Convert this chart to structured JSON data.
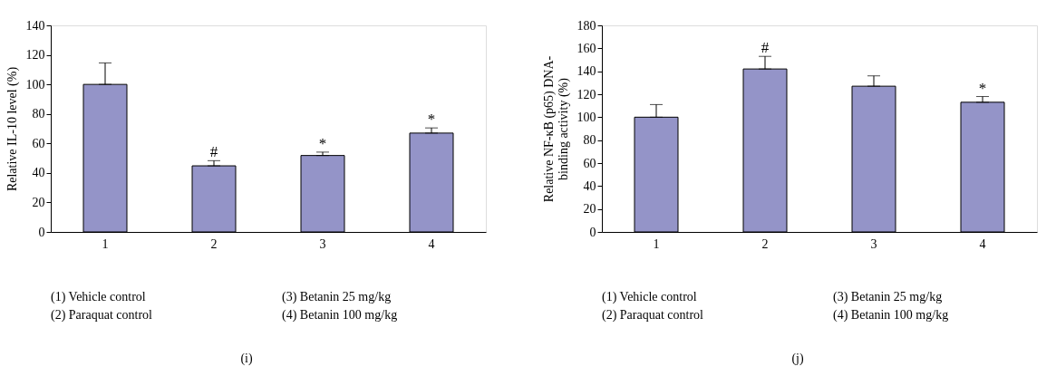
{
  "chart_data": [
    {
      "type": "bar",
      "categories": [
        "1",
        "2",
        "3",
        "4"
      ],
      "ylabel": "Relative IL-10 level (%)",
      "series": [
        {
          "color": "#9494c8",
          "values": [
            100,
            44.8,
            51.8,
            67
          ],
          "errors": [
            [
              100,
              114.5
            ],
            [
              44.8,
              48.3
            ],
            [
              51.8,
              54.1
            ],
            [
              67,
              70.5
            ]
          ]
        }
      ],
      "ylim": [
        0,
        140
      ],
      "yticks": [
        0,
        20,
        40,
        60,
        80,
        100,
        120,
        140
      ],
      "grid": false,
      "annotations": [
        {
          "text": "#",
          "x": "2",
          "y": 48.3
        },
        {
          "text": "*",
          "x": "3",
          "y": 54.1
        },
        {
          "text": "*",
          "x": "4",
          "y": 70.5
        },
        "(1) Vehicle control",
        "(3) Betanin 25 mg/kg",
        "(2) Paraquat control",
        "(4) Betanin 100 mg/kg",
        "(i)"
      ]
    },
    {
      "type": "bar",
      "categories": [
        "1",
        "2",
        "3",
        "4"
      ],
      "ylabel": "Relative NF-κB (p65) DNA-binding activity (%)",
      "series": [
        {
          "color": "#9494c8",
          "values": [
            100,
            142,
            127,
            113
          ],
          "errors": [
            [
              100,
              111
            ],
            [
              142,
              153
            ],
            [
              127,
              136
            ],
            [
              113,
              118
            ]
          ]
        }
      ],
      "ylim": [
        0,
        180
      ],
      "yticks": [
        0,
        20,
        40,
        60,
        80,
        100,
        120,
        140,
        160,
        180
      ],
      "grid": false,
      "annotations": [
        {
          "text": "#",
          "x": "2",
          "y": 153
        },
        {
          "text": "*",
          "x": "4",
          "y": 118
        },
        "(1) Vehicle control",
        "(3) Betanin 25 mg/kg",
        "(2) Paraquat control",
        "(4) Betanin 100 mg/kg",
        "(j)"
      ]
    }
  ]
}
